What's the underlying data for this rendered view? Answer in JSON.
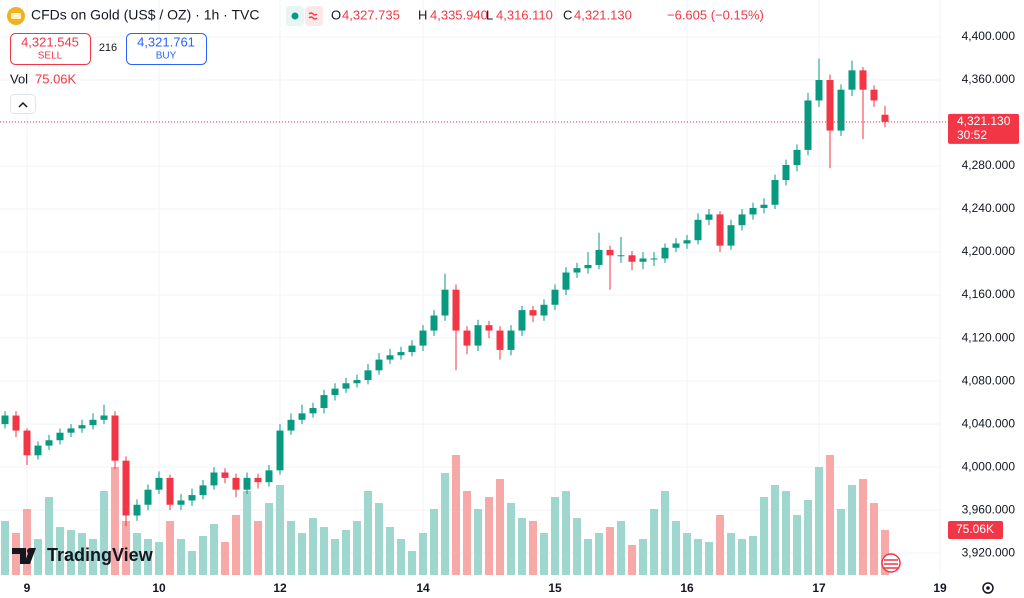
{
  "chart_data": {
    "type": "candlestick",
    "title": "CFDs on Gold (US$ / OZ) · 1h · TVC",
    "quote": [
      {
        "name": "O",
        "value": 4327.735,
        "label": "4,327.735"
      },
      {
        "name": "H",
        "value": 4335.94,
        "label": "4,335.940"
      },
      {
        "name": "L",
        "value": 4316.11,
        "label": "4,316.110"
      },
      {
        "name": "C",
        "value": 4321.13,
        "label": "4,321.130"
      }
    ],
    "change": "−6.605 (−0.15%)",
    "sell": {
      "label": "SELL",
      "value": 4321.545,
      "price_label": "4,321.545"
    },
    "buy": {
      "label": "BUY",
      "value": 4321.761,
      "price_label": "4,321.761"
    },
    "spread": 216,
    "volume_title": "Vol",
    "last_volume": {
      "value": 75.06,
      "label": "75.06K"
    },
    "last_price": {
      "value": 4321.13,
      "label": "4,321.130"
    },
    "countdown": "30:52",
    "brand": "TradingView",
    "up_color": "#089981",
    "down_color": "#f23645",
    "volume_up_color": "#9fd6cd",
    "volume_down_color": "#f7a9a7",
    "ylim": [
      3902,
      4420
    ],
    "vlim": [
      0,
      250
    ],
    "yticks": [
      {
        "value": 4400,
        "label": "4,400.000"
      },
      {
        "value": 4360,
        "label": "4,360.000"
      },
      {
        "value": 4320,
        "label": "4,320.000"
      },
      {
        "value": 4280,
        "label": "4,280.000"
      },
      {
        "value": 4240,
        "label": "4,240.000"
      },
      {
        "value": 4200,
        "label": "4,200.000"
      },
      {
        "value": 4160,
        "label": "4,160.000"
      },
      {
        "value": 4120,
        "label": "4,120.000"
      },
      {
        "value": 4080,
        "label": "4,080.000"
      },
      {
        "value": 4040,
        "label": "4,040.000"
      },
      {
        "value": 4000,
        "label": "4,000.000"
      },
      {
        "value": 3960,
        "label": "3,960.000"
      },
      {
        "value": 3920,
        "label": "3,920.000"
      }
    ],
    "categories": [
      null,
      null,
      "9",
      null,
      null,
      null,
      null,
      null,
      null,
      null,
      null,
      null,
      null,
      null,
      "10",
      null,
      null,
      null,
      null,
      null,
      null,
      null,
      null,
      null,
      null,
      "12",
      null,
      null,
      null,
      null,
      null,
      null,
      null,
      null,
      null,
      null,
      null,
      null,
      "14",
      null,
      null,
      null,
      null,
      null,
      null,
      null,
      null,
      null,
      null,
      null,
      "15",
      null,
      null,
      null,
      null,
      null,
      null,
      null,
      null,
      null,
      null,
      null,
      "16",
      null,
      null,
      null,
      null,
      null,
      null,
      null,
      null,
      null,
      null,
      null,
      "17",
      null,
      null,
      null,
      null,
      null,
      null,
      null,
      null,
      null,
      null,
      "19"
    ],
    "open": [
      4040,
      4048,
      4034,
      4011,
      4020,
      4025,
      4032,
      4036,
      4039,
      4044,
      4048,
      4006,
      3955,
      3965,
      3979,
      3990,
      3965,
      3969,
      3974,
      3983,
      3995,
      3990,
      3979,
      3990,
      3986,
      3997,
      4034,
      4044,
      4050,
      4055,
      4067,
      4073,
      4078,
      4081,
      4090,
      4100,
      4104,
      4107,
      4113,
      4127,
      4141,
      4165,
      4127,
      4113,
      4132,
      4127,
      4109,
      4127,
      4146,
      4141,
      4151,
      4165,
      4181,
      4185,
      4188,
      4202,
      4197,
      4197,
      4191,
      4194,
      4194,
      4204,
      4208,
      4211,
      4230,
      4235,
      4206,
      4225,
      4235,
      4241,
      4244,
      4267,
      4281,
      4295,
      4341,
      4360,
      4313,
      4351,
      4369,
      4351,
      4327.735,
      null,
      null,
      null,
      null,
      null
    ],
    "high": [
      4052,
      4052,
      4036,
      4024,
      4030,
      4036,
      4040,
      4044,
      4050,
      4058,
      4052,
      4010,
      3970,
      3984,
      3996,
      3993,
      3975,
      3980,
      3988,
      4000,
      3999,
      3994,
      3995,
      3994,
      4002,
      4040,
      4050,
      4058,
      4060,
      4072,
      4078,
      4083,
      4086,
      4096,
      4106,
      4110,
      4112,
      4118,
      4132,
      4146,
      4180,
      4170,
      4131,
      4137,
      4136,
      4131,
      4132,
      4150,
      4150,
      4156,
      4170,
      4186,
      4190,
      4200,
      4218,
      4206,
      4214,
      4201,
      4200,
      4200,
      4208,
      4213,
      4216,
      4236,
      4240,
      4238,
      4230,
      4240,
      4246,
      4250,
      4272,
      4286,
      4300,
      4348,
      4380,
      4365,
      4356,
      4378,
      4372,
      4355,
      4335.94,
      null,
      null,
      null,
      null,
      null
    ],
    "low": [
      4036,
      4028,
      4002,
      4007,
      4016,
      4021,
      4028,
      4032,
      4035,
      4040,
      3998,
      3945,
      3950,
      3960,
      3975,
      3960,
      3960,
      3964,
      3970,
      3979,
      3985,
      3972,
      3975,
      3980,
      3982,
      3993,
      4030,
      4040,
      4046,
      4050,
      4062,
      4069,
      4074,
      4077,
      4086,
      4096,
      4100,
      4103,
      4108,
      4122,
      4136,
      4090,
      4105,
      4108,
      4120,
      4100,
      4104,
      4122,
      4135,
      4136,
      4146,
      4160,
      4176,
      4180,
      4184,
      4165,
      4190,
      4183,
      4184,
      4187,
      4190,
      4200,
      4203,
      4207,
      4225,
      4200,
      4202,
      4220,
      4230,
      4236,
      4240,
      4262,
      4275,
      4290,
      4335,
      4278,
      4308,
      4345,
      4305,
      4335,
      4316.11,
      null,
      null,
      null,
      null,
      null
    ],
    "close": [
      4048,
      4034,
      4011,
      4020,
      4025,
      4032,
      4036,
      4039,
      4044,
      4048,
      4006,
      3955,
      3965,
      3979,
      3990,
      3965,
      3969,
      3974,
      3983,
      3995,
      3990,
      3979,
      3990,
      3986,
      3997,
      4034,
      4044,
      4050,
      4055,
      4067,
      4073,
      4078,
      4081,
      4090,
      4100,
      4104,
      4107,
      4113,
      4127,
      4141,
      4165,
      4127,
      4113,
      4132,
      4127,
      4109,
      4127,
      4146,
      4141,
      4151,
      4165,
      4181,
      4185,
      4188,
      4202,
      4197,
      4197,
      4191,
      4194,
      4194,
      4204,
      4208,
      4211,
      4230,
      4235,
      4206,
      4225,
      4235,
      4241,
      4244,
      4267,
      4281,
      4295,
      4341,
      4360,
      4313,
      4351,
      4369,
      4351,
      4341,
      4321.13,
      null,
      null,
      null,
      null,
      null
    ],
    "volume": [
      90,
      70,
      110,
      60,
      130,
      80,
      75,
      70,
      60,
      140,
      180,
      90,
      70,
      60,
      55,
      90,
      60,
      40,
      65,
      85,
      55,
      100,
      140,
      90,
      120,
      150,
      90,
      70,
      95,
      80,
      60,
      75,
      90,
      140,
      120,
      80,
      60,
      40,
      70,
      110,
      170,
      200,
      140,
      110,
      130,
      160,
      120,
      95,
      90,
      70,
      130,
      140,
      95,
      60,
      70,
      80,
      90,
      50,
      60,
      110,
      140,
      90,
      70,
      60,
      55,
      100,
      70,
      60,
      65,
      130,
      150,
      140,
      100,
      125,
      180,
      200,
      110,
      150,
      160,
      120,
      75.06,
      null,
      null,
      null,
      null,
      null
    ]
  }
}
